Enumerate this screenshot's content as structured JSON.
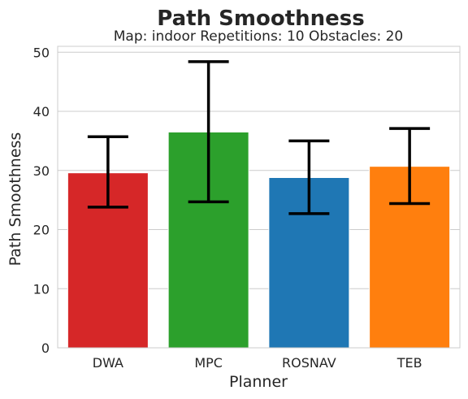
{
  "chart_data": {
    "type": "bar",
    "title": "Path Smoothness",
    "subtitle": "Map: indoor Repetitions: 10 Obstacles: 20",
    "xlabel": "Planner",
    "ylabel": "Path Smoothness",
    "categories": [
      "DWA",
      "MPC",
      "ROSNAV",
      "TEB"
    ],
    "values": [
      29.6,
      36.5,
      28.8,
      30.7
    ],
    "error_low": [
      23.8,
      24.7,
      22.7,
      24.4
    ],
    "error_high": [
      35.7,
      48.4,
      35.0,
      37.1
    ],
    "colors": [
      "#d62728",
      "#2ca02c",
      "#1f77b4",
      "#ff7f0e"
    ],
    "ylim": [
      0,
      51
    ],
    "yticks": [
      0,
      10,
      20,
      30,
      40,
      50
    ],
    "grid": true
  }
}
